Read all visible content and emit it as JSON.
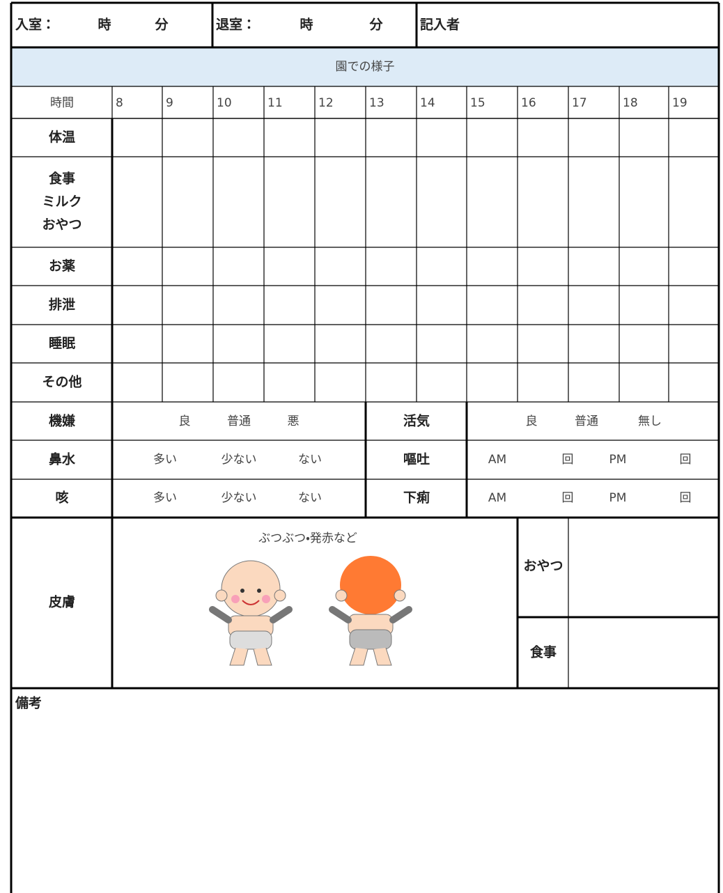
{
  "header": {
    "entry": {
      "label": "入室：",
      "hour": "時",
      "minute": "分"
    },
    "exit": {
      "label": "退室：",
      "hour": "時",
      "minute": "分"
    },
    "recorder": "記入者"
  },
  "section_title": "園での様子",
  "time_label": "時間",
  "hours": [
    8,
    9,
    10,
    11,
    12,
    13,
    14,
    15,
    16,
    17,
    18,
    19
  ],
  "rows": [
    [
      "体温"
    ],
    [
      "食事",
      "ミルク",
      "おやつ"
    ],
    [
      "お薬"
    ],
    [
      "排泄"
    ],
    [
      "睡眠"
    ],
    [
      "その他"
    ]
  ],
  "mood": {
    "label": "機嫌",
    "options": [
      "良",
      "普通",
      "悪"
    ]
  },
  "vitality": {
    "label": "活気",
    "options": [
      "良",
      "普通",
      "無し"
    ]
  },
  "nasal": {
    "label": "鼻水",
    "options": [
      "多い",
      "少ない",
      "ない"
    ]
  },
  "cough": {
    "label": "咳",
    "options": [
      "多い",
      "少ない",
      "ない"
    ]
  },
  "vomit": {
    "label": "嘔吐",
    "am": "AM",
    "am_count": "回",
    "pm": "PM",
    "pm_count": "回"
  },
  "diarrhea": {
    "label": "下痢",
    "am": "AM",
    "am_count": "回",
    "pm": "PM",
    "pm_count": "回"
  },
  "skin": {
    "label": "皮膚",
    "note": "ぶつぶつ・発赤など",
    "snack": "おやつ",
    "meal": "食事"
  },
  "remarks": "備考"
}
